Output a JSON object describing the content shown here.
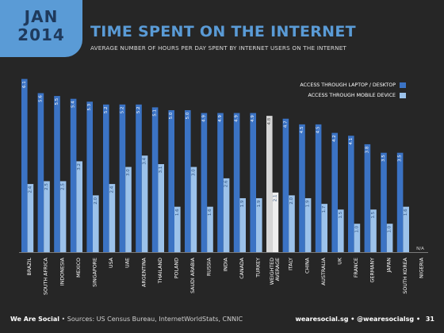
{
  "header": {
    "badge_month": "JAN",
    "badge_year": "2014",
    "title": "TIME SPENT ON THE INTERNET",
    "subtitle": "AVERAGE NUMBER OF HOURS PER DAY SPENT BY INTERNET USERS ON THE INTERNET"
  },
  "footer": {
    "brand": "We Are Social",
    "separator": "•",
    "sources": "Sources: US Census Bureau, InternetWorldStats, CNNIC",
    "site": "wearesocial.sg",
    "handle": "@wearesocialsg",
    "page": "31"
  },
  "colors": {
    "background": "#262626",
    "desktop": "#3b73c4",
    "mobile": "#9cc2ea",
    "desktop_highlight": "#d6d6d6",
    "mobile_highlight": "#eeeeee",
    "accent": "#5a9bd6"
  },
  "chart_data": {
    "type": "bar",
    "categories": [
      "BRAZIL",
      "SOUTH AFRICA",
      "INDONESIA",
      "MEXICO",
      "SINGAPORE",
      "USA",
      "UAE",
      "ARGENTINA",
      "THAILAND",
      "POLAND",
      "SAUDI ARABIA",
      "RUSSIA",
      "INDIA",
      "CANADA",
      "TURKEY",
      "WEIGHTED AVERAGE",
      "ITALY",
      "CHINA",
      "AUSTRALIA",
      "UK",
      "FRANCE",
      "GERMANY",
      "JAPAN",
      "SOUTH KOREA",
      "NIGERIA"
    ],
    "series": [
      {
        "name": "ACCESS THROUGH LAPTOP / DESKTOP",
        "values": [
          6.1,
          5.6,
          5.5,
          5.4,
          5.3,
          5.2,
          5.2,
          5.2,
          5.1,
          5.0,
          5.0,
          4.9,
          4.9,
          4.9,
          4.9,
          4.8,
          4.7,
          4.5,
          4.5,
          4.2,
          4.1,
          3.8,
          3.5,
          3.5,
          null
        ],
        "labels": [
          "6.1",
          "5.6",
          "5.5",
          "5.4",
          "5.3",
          "5.2",
          "5.2",
          "5.2",
          "5.1",
          "5.0",
          "5.0",
          "4.9",
          "4.9",
          "4.9",
          "4.9",
          "4.8",
          "4.7",
          "4.5",
          "4.5",
          "4.2",
          "4.1",
          "3.8",
          "3.5",
          "3.5",
          "N/A"
        ]
      },
      {
        "name": "ACCESS THROUGH MOBILE DEVICE",
        "values": [
          2.4,
          2.5,
          2.5,
          3.2,
          2.0,
          2.4,
          3.0,
          3.4,
          3.1,
          1.6,
          3.0,
          1.6,
          2.6,
          1.9,
          1.9,
          2.1,
          2.0,
          1.9,
          1.7,
          1.5,
          1.0,
          1.5,
          1.0,
          1.6,
          null
        ],
        "labels": [
          "2.4",
          "2.5",
          "2.5",
          "3.2",
          "2.0",
          "2.4",
          "3.0",
          "3.4",
          "3.1",
          "1.6",
          "3.0",
          "1.6",
          "2.6",
          "1.9",
          "1.9",
          "2.1",
          "2.0",
          "1.9",
          "1.7",
          "1.5",
          "1.0",
          "1.5",
          "1.0",
          "1.6",
          ""
        ]
      }
    ],
    "highlight_category": "WEIGHTED AVERAGE",
    "ylim": [
      0,
      6.2
    ],
    "grid": false,
    "legend": "top-right"
  }
}
